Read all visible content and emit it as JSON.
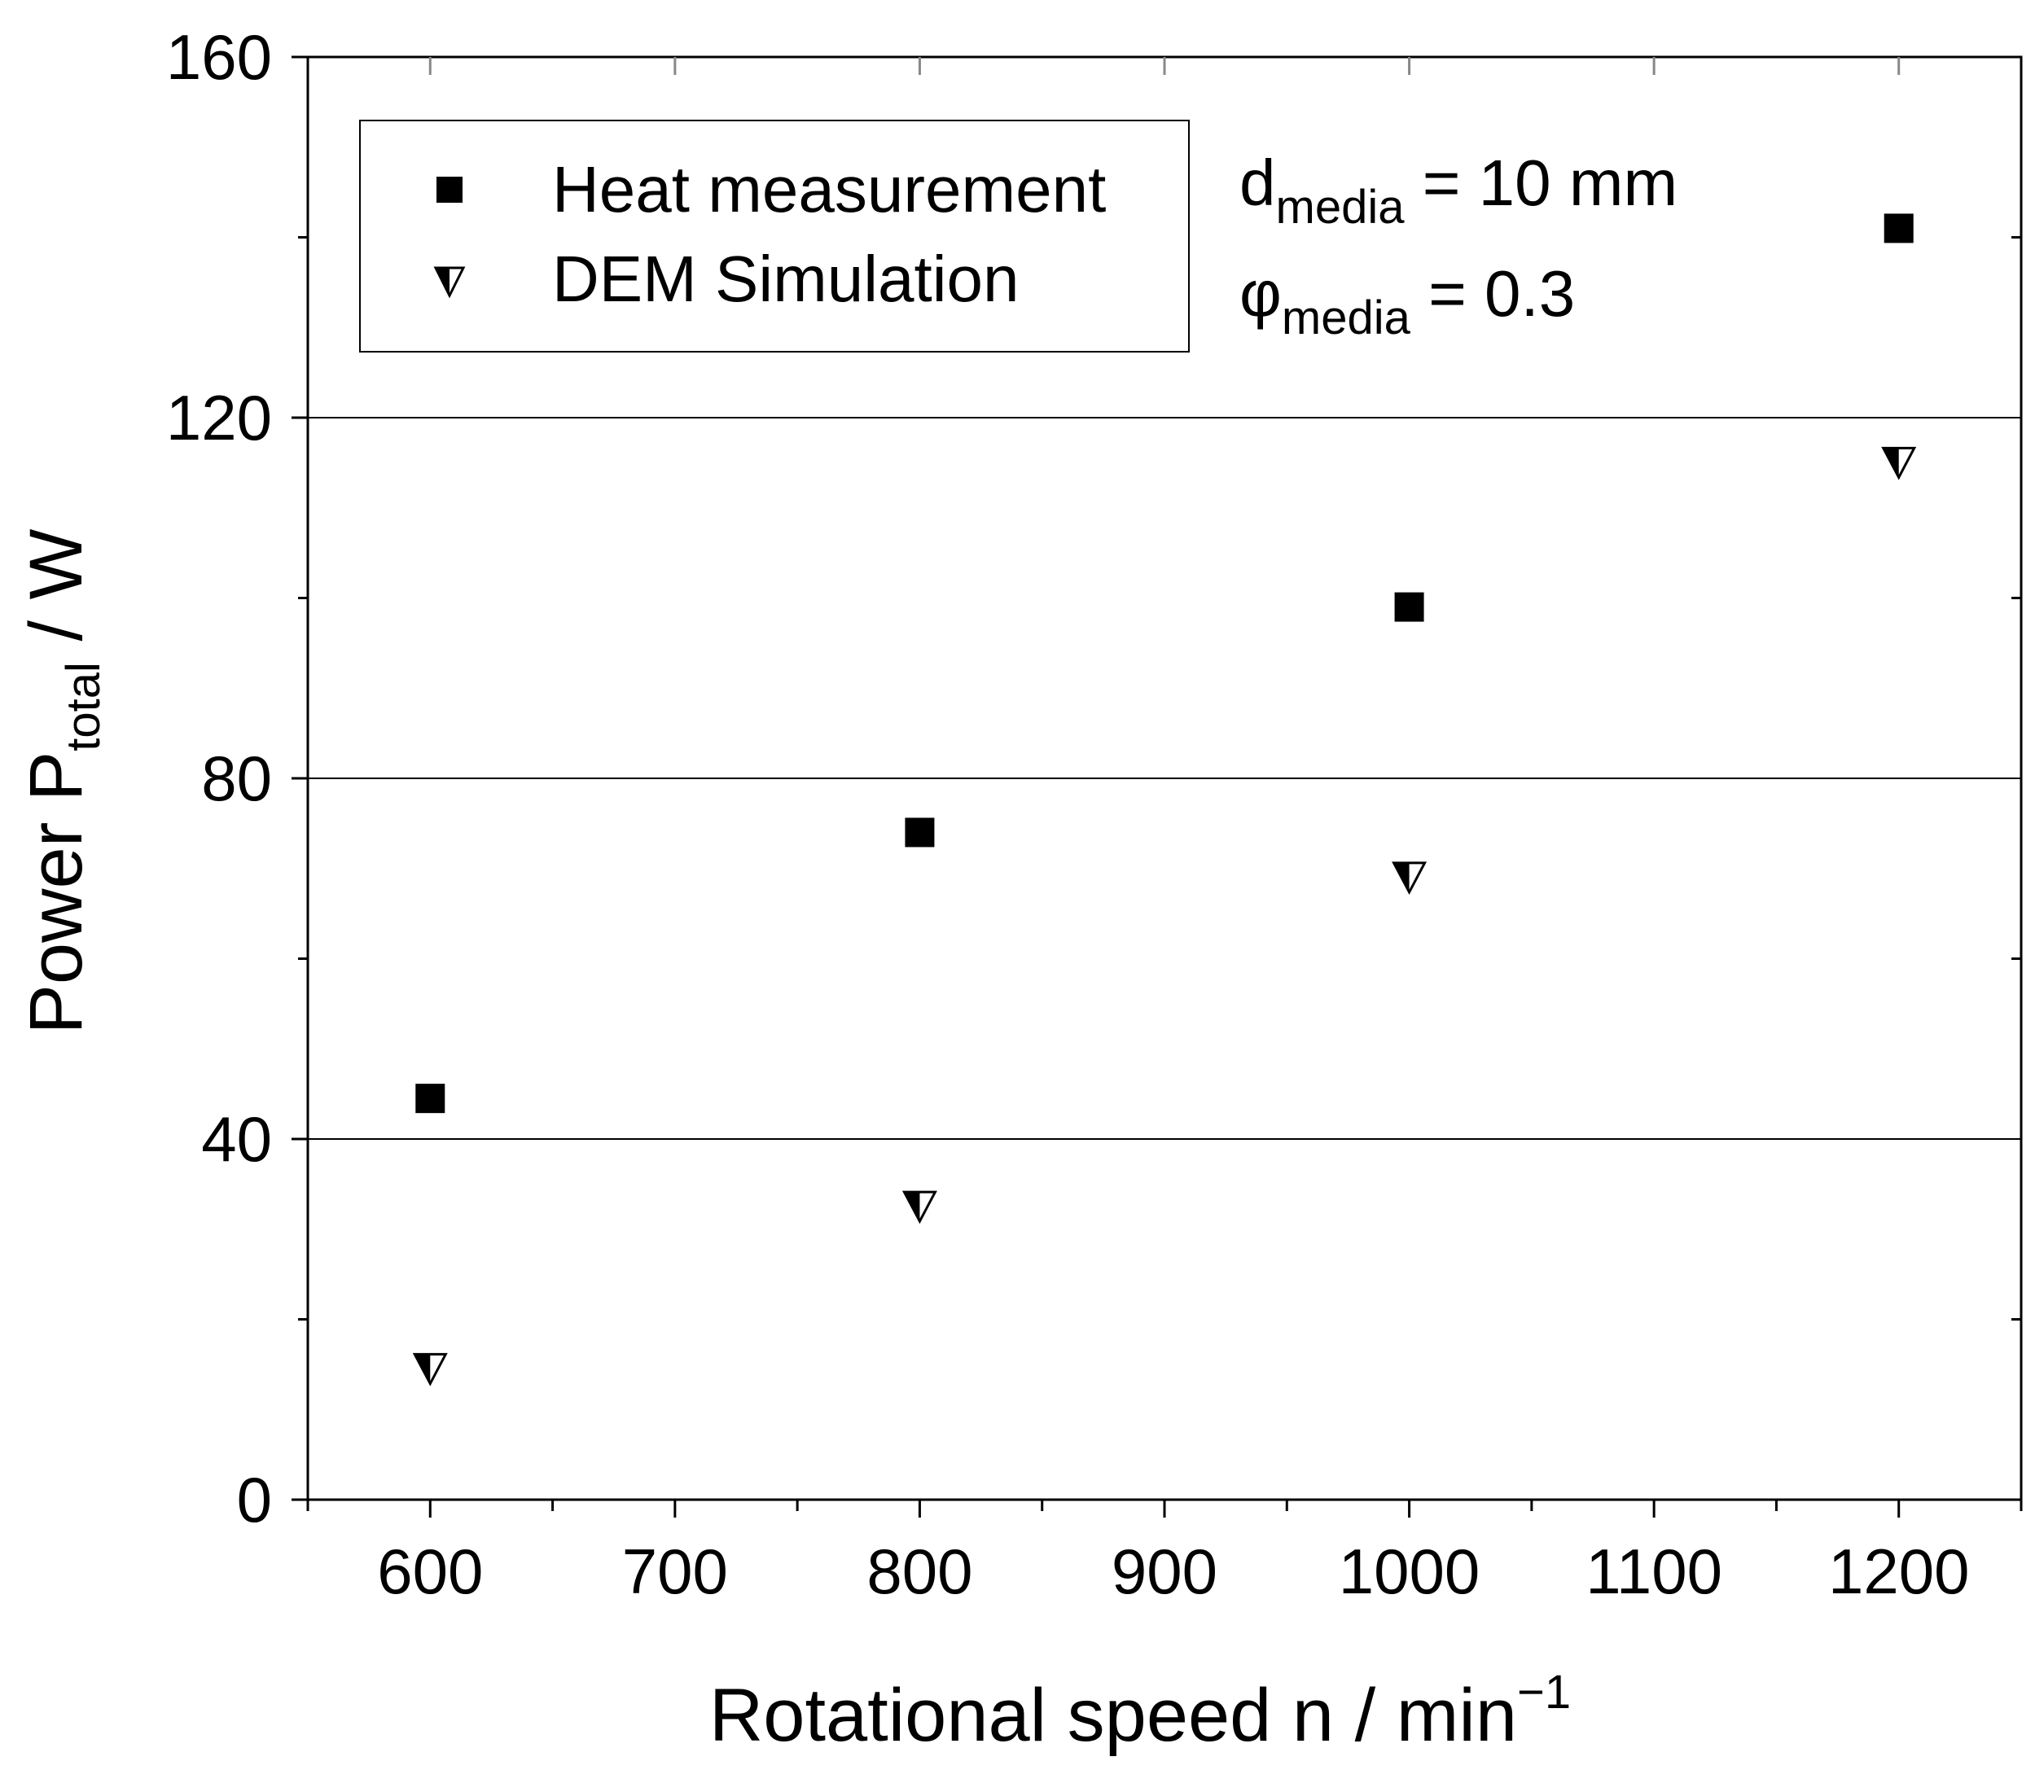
{
  "chart_data": {
    "type": "scatter",
    "xlabel": "Rotational speed n / min",
    "xlabel_superscript": "−1",
    "ylabel_main": "Power P",
    "ylabel_subscript": "total",
    "ylabel_unit": " / W",
    "xlim": [
      550,
      1250
    ],
    "ylim": [
      0,
      160
    ],
    "x_ticks": [
      600,
      700,
      800,
      900,
      1000,
      1100,
      1200
    ],
    "x_minor_ticks": [
      550,
      650,
      750,
      850,
      950,
      1050,
      1150,
      1250
    ],
    "y_ticks": [
      0,
      40,
      80,
      120,
      160
    ],
    "y_minor_ticks": [
      20,
      60,
      100,
      140
    ],
    "grid": "horizontal major",
    "legend_position": "top-left",
    "series": [
      {
        "name": "Heat measurement",
        "marker": "square",
        "color": "#000000",
        "x": [
          600,
          800,
          1000,
          1200
        ],
        "y": [
          44.5,
          74.0,
          99.0,
          141.0
        ]
      },
      {
        "name": "DEM Simulation",
        "marker": "half-filled down-triangle",
        "color": "#000000",
        "x": [
          600,
          800,
          1000,
          1200
        ],
        "y": [
          14.5,
          32.5,
          69.0,
          115.0
        ]
      }
    ],
    "annotations": [
      {
        "main": "d",
        "subscript": "media",
        "rest": " = 10 mm"
      },
      {
        "main": "φ",
        "subscript": "media",
        "rest": " = 0.3"
      }
    ]
  }
}
